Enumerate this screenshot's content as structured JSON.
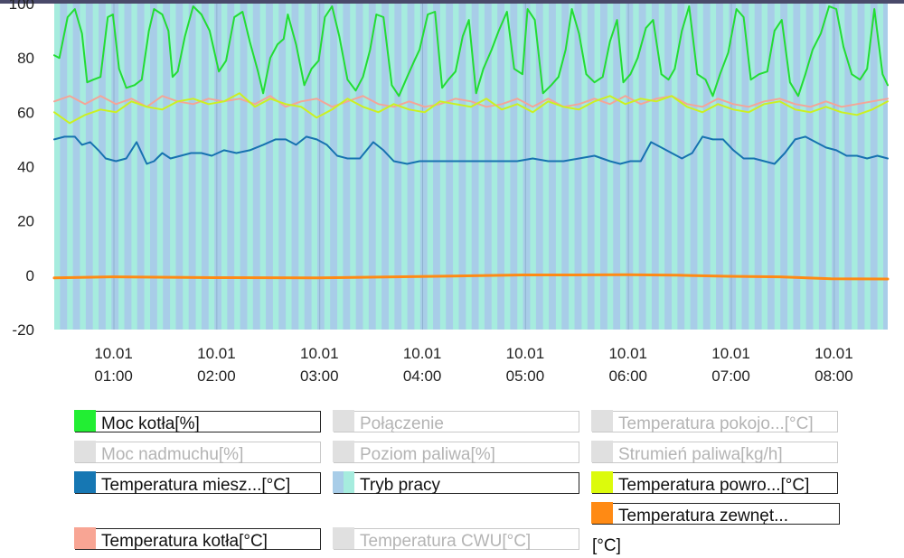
{
  "chart_data": {
    "type": "line",
    "title": "",
    "xlabel": "",
    "ylabel": "",
    "ylim": [
      -20,
      100
    ],
    "yticks": [
      -20,
      0,
      20,
      40,
      60,
      80,
      100
    ],
    "xlim_hours": [
      0.45,
      8.55
    ],
    "xticks": [
      {
        "hour": 1,
        "date": "10.01",
        "time": "01:00"
      },
      {
        "hour": 2,
        "date": "10.01",
        "time": "02:00"
      },
      {
        "hour": 3,
        "date": "10.01",
        "time": "03:00"
      },
      {
        "hour": 4,
        "date": "10.01",
        "time": "04:00"
      },
      {
        "hour": 5,
        "date": "10.01",
        "time": "05:00"
      },
      {
        "hour": 6,
        "date": "10.01",
        "time": "06:00"
      },
      {
        "hour": 7,
        "date": "10.01",
        "time": "07:00"
      },
      {
        "hour": 8,
        "date": "10.01",
        "time": "08:00"
      }
    ],
    "background_bands": {
      "name": "Tryb pracy",
      "colors": {
        "work": "#a6ecde",
        "idle": "#a8cde8"
      },
      "period_hours": 0.125,
      "work_fraction": 0.45
    },
    "series": [
      {
        "name": "Moc kotła[%]",
        "color": "#22dd33",
        "x": [
          0.45,
          0.5,
          0.58,
          0.65,
          0.72,
          0.77,
          0.83,
          0.9,
          0.97,
          1.02,
          1.08,
          1.15,
          1.23,
          1.3,
          1.37,
          1.42,
          1.5,
          1.56,
          1.6,
          1.65,
          1.72,
          1.8,
          1.88,
          1.96,
          2.05,
          2.12,
          2.2,
          2.28,
          2.35,
          2.43,
          2.48,
          2.55,
          2.62,
          2.68,
          2.72,
          2.8,
          2.88,
          2.95,
          3.02,
          3.08,
          3.15,
          3.22,
          3.3,
          3.38,
          3.45,
          3.52,
          3.58,
          3.65,
          3.73,
          3.8,
          3.88,
          3.95,
          4.0,
          4.08,
          4.15,
          4.22,
          4.28,
          4.35,
          4.42,
          4.48,
          4.55,
          4.62,
          4.7,
          4.77,
          4.85,
          4.92,
          5.0,
          5.05,
          5.12,
          5.2,
          5.28,
          5.35,
          5.42,
          5.48,
          5.55,
          5.62,
          5.7,
          5.78,
          5.85,
          5.92,
          5.98,
          6.05,
          6.12,
          6.2,
          6.27,
          6.35,
          6.42,
          6.48,
          6.55,
          6.62,
          6.7,
          6.78,
          6.85,
          6.92,
          7.0,
          7.08,
          7.15,
          7.22,
          7.3,
          7.38,
          7.45,
          7.52,
          7.6,
          7.68,
          7.75,
          7.82,
          7.9,
          7.98,
          8.05,
          8.12,
          8.2,
          8.28,
          8.35,
          8.42,
          8.5,
          8.55
        ],
        "values": [
          81,
          80,
          95,
          98,
          89,
          71,
          72,
          73,
          95,
          96,
          76,
          69,
          70,
          72,
          90,
          98,
          96,
          90,
          73,
          75,
          88,
          99,
          96,
          90,
          75,
          79,
          95,
          97,
          86,
          75,
          67,
          80,
          85,
          87,
          96,
          85,
          70,
          76,
          79,
          95,
          99,
          88,
          72,
          68,
          73,
          83,
          96,
          95,
          70,
          66,
          73,
          79,
          83,
          96,
          97,
          69,
          72,
          75,
          88,
          94,
          67,
          76,
          83,
          90,
          97,
          76,
          74,
          98,
          94,
          67,
          70,
          73,
          83,
          98,
          89,
          74,
          71,
          73,
          86,
          94,
          71,
          74,
          80,
          91,
          94,
          74,
          72,
          76,
          90,
          99,
          74,
          72,
          66,
          74,
          82,
          98,
          95,
          72,
          74,
          75,
          90,
          94,
          71,
          66,
          74,
          83,
          89,
          99,
          98,
          84,
          74,
          72,
          76,
          98,
          74,
          70
        ]
      },
      {
        "name": "Temperatura kotła[°C]",
        "color": "#f4a598",
        "x": [
          0.45,
          0.6,
          0.75,
          0.9,
          1.05,
          1.2,
          1.35,
          1.5,
          1.65,
          1.8,
          1.95,
          2.1,
          2.25,
          2.4,
          2.55,
          2.7,
          2.85,
          3.0,
          3.15,
          3.3,
          3.45,
          3.6,
          3.75,
          3.9,
          4.05,
          4.2,
          4.35,
          4.5,
          4.65,
          4.8,
          4.95,
          5.1,
          5.25,
          5.4,
          5.55,
          5.7,
          5.85,
          6.0,
          6.15,
          6.3,
          6.45,
          6.6,
          6.75,
          6.9,
          7.05,
          7.2,
          7.35,
          7.5,
          7.65,
          7.8,
          7.95,
          8.1,
          8.25,
          8.4,
          8.55
        ],
        "values": [
          64,
          66,
          63,
          66,
          63,
          65,
          62,
          66,
          64,
          63,
          65,
          64,
          65,
          63,
          66,
          62,
          64,
          65,
          62,
          64,
          66,
          63,
          62,
          64,
          62,
          63,
          65,
          64,
          62,
          63,
          65,
          62,
          65,
          62,
          63,
          65,
          63,
          66,
          63,
          65,
          66,
          63,
          62,
          65,
          63,
          62,
          64,
          65,
          63,
          62,
          64,
          62,
          63,
          64,
          65
        ]
      },
      {
        "name": "Temperatura powro...[°C]",
        "color": "#ccf021",
        "x": [
          0.45,
          0.6,
          0.75,
          0.9,
          1.05,
          1.2,
          1.35,
          1.5,
          1.65,
          1.8,
          1.95,
          2.1,
          2.25,
          2.4,
          2.55,
          2.7,
          2.85,
          3.0,
          3.15,
          3.3,
          3.45,
          3.6,
          3.75,
          3.9,
          4.05,
          4.2,
          4.35,
          4.5,
          4.65,
          4.8,
          4.95,
          5.1,
          5.25,
          5.4,
          5.55,
          5.7,
          5.85,
          6.0,
          6.15,
          6.3,
          6.45,
          6.6,
          6.75,
          6.9,
          7.05,
          7.2,
          7.35,
          7.5,
          7.65,
          7.8,
          7.95,
          8.1,
          8.25,
          8.4,
          8.55
        ],
        "values": [
          60,
          56,
          59,
          61,
          60,
          64,
          62,
          61,
          64,
          65,
          63,
          64,
          67,
          62,
          65,
          63,
          62,
          58,
          61,
          65,
          62,
          60,
          63,
          61,
          60,
          64,
          63,
          62,
          65,
          61,
          63,
          60,
          64,
          62,
          61,
          64,
          66,
          63,
          65,
          64,
          66,
          62,
          60,
          63,
          61,
          60,
          63,
          64,
          61,
          60,
          62,
          60,
          59,
          61,
          64
        ]
      },
      {
        "name": "Temperatura miesz...[°C]",
        "color": "#1672b0",
        "x": [
          0.45,
          0.55,
          0.65,
          0.72,
          0.8,
          0.88,
          0.95,
          1.05,
          1.15,
          1.25,
          1.35,
          1.42,
          1.5,
          1.58,
          1.68,
          1.78,
          1.88,
          1.98,
          2.1,
          2.22,
          2.35,
          2.48,
          2.6,
          2.7,
          2.8,
          2.9,
          3.0,
          3.1,
          3.2,
          3.3,
          3.42,
          3.55,
          3.65,
          3.75,
          3.88,
          4.0,
          4.12,
          4.25,
          4.38,
          4.5,
          4.65,
          4.8,
          4.95,
          5.1,
          5.25,
          5.4,
          5.55,
          5.7,
          5.85,
          5.95,
          6.05,
          6.15,
          6.25,
          6.35,
          6.45,
          6.55,
          6.65,
          6.75,
          6.85,
          6.95,
          7.05,
          7.15,
          7.25,
          7.35,
          7.45,
          7.55,
          7.65,
          7.75,
          7.85,
          7.95,
          8.05,
          8.15,
          8.25,
          8.35,
          8.45,
          8.55
        ],
        "values": [
          50,
          51,
          51,
          48,
          49,
          46,
          43,
          42,
          43,
          49,
          41,
          42,
          45,
          43,
          44,
          45,
          45,
          44,
          46,
          45,
          46,
          48,
          50,
          50,
          48,
          51,
          50,
          48,
          44,
          43,
          43,
          49,
          46,
          42,
          41,
          42,
          42,
          42,
          42,
          42,
          42,
          42,
          42,
          43,
          42,
          42,
          43,
          44,
          42,
          41,
          42,
          42,
          49,
          47,
          45,
          43,
          45,
          51,
          50,
          50,
          46,
          43,
          43,
          42,
          41,
          45,
          50,
          51,
          49,
          47,
          46,
          44,
          44,
          43,
          44,
          43
        ]
      },
      {
        "name": "Temperatura zewnęt...[°C]",
        "color": "#ff8a14",
        "x": [
          0.45,
          1.0,
          2.0,
          3.0,
          4.0,
          5.0,
          5.5,
          6.0,
          6.5,
          7.0,
          7.5,
          8.0,
          8.55
        ],
        "values": [
          -1,
          -0.6,
          -0.9,
          -1.0,
          -0.5,
          0.1,
          0.1,
          0.2,
          0,
          -0.4,
          -0.6,
          -1.3,
          -1.4
        ]
      }
    ],
    "legend": [
      {
        "label": "Moc kotła[%]",
        "color": "#22ee33",
        "enabled": true
      },
      {
        "label": "Połączenie",
        "color": "#e0e0e0",
        "enabled": false
      },
      {
        "label": "Temperatura pokojo...[°C]",
        "color": "#e0e0e0",
        "enabled": false
      },
      {
        "label": "Moc nadmuchu[%]",
        "color": "#e0e0e0",
        "enabled": false
      },
      {
        "label": "Poziom paliwa[%]",
        "color": "#e0e0e0",
        "enabled": false
      },
      {
        "label": "Strumień paliwa[kg/h]",
        "color": "#e0e0e0",
        "enabled": false
      },
      {
        "label": "Temperatura miesz...[°C]",
        "color": "#1677b3",
        "enabled": true
      },
      {
        "label": "Tryb pracy",
        "color": "#a8cde8",
        "enabled": true
      },
      {
        "label": "Temperatura powro...[°C]",
        "color": "#dcfb0c",
        "enabled": true
      },
      {
        "label": "Temperatura zewnęt...",
        "color": "#ff8a14",
        "enabled": true
      },
      {
        "label": "Temperatura kotła[°C]",
        "color": "#f8a594",
        "enabled": true
      },
      {
        "label": "Temperatura CWU[°C]",
        "color": "#e0e0e0",
        "enabled": false
      }
    ],
    "legend_overflow_text": "[°C]"
  }
}
